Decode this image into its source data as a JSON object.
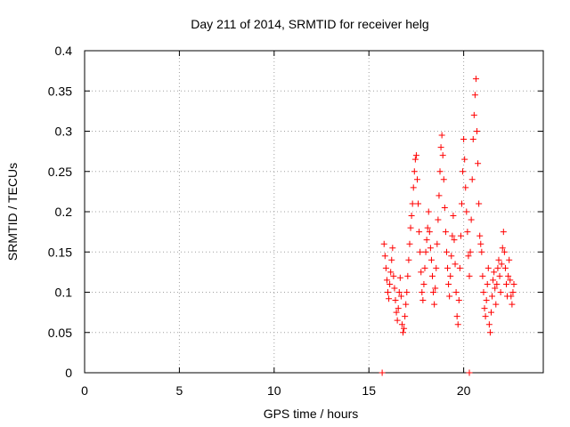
{
  "chart_data": {
    "type": "scatter",
    "title": "Day 211 of 2014, SRMTID for receiver helg",
    "xlabel": "GPS time / hours",
    "ylabel": "SRMTID / TECUs",
    "xlim": [
      0,
      24.2
    ],
    "ylim": [
      0,
      0.4
    ],
    "x_ticks": [
      0,
      5,
      10,
      15,
      20
    ],
    "y_ticks": [
      0,
      0.05,
      0.1,
      0.15,
      0.2,
      0.25,
      0.3,
      0.35,
      0.4
    ],
    "x_tick_labels": [
      "0",
      "5",
      "10",
      "15",
      "20"
    ],
    "y_tick_labels": [
      "0",
      "0.05",
      "0.1",
      "0.15",
      "0.2",
      "0.25",
      "0.3",
      "0.35",
      "0.4"
    ],
    "grid": true,
    "marker": "plus",
    "series": [
      {
        "color": "#ff0000",
        "points": [
          [
            15.7,
            0.0
          ],
          [
            20.3,
            0.0
          ],
          [
            15.8,
            0.16
          ],
          [
            15.85,
            0.145
          ],
          [
            15.9,
            0.13
          ],
          [
            15.95,
            0.115
          ],
          [
            16.0,
            0.1
          ],
          [
            16.05,
            0.092
          ],
          [
            16.1,
            0.11
          ],
          [
            16.15,
            0.125
          ],
          [
            16.2,
            0.14
          ],
          [
            16.25,
            0.155
          ],
          [
            16.3,
            0.12
          ],
          [
            16.35,
            0.105
          ],
          [
            16.4,
            0.09
          ],
          [
            16.45,
            0.075
          ],
          [
            16.5,
            0.065
          ],
          [
            16.55,
            0.08
          ],
          [
            16.6,
            0.1
          ],
          [
            16.65,
            0.118
          ],
          [
            16.7,
            0.095
          ],
          [
            16.75,
            0.06
          ],
          [
            16.8,
            0.05
          ],
          [
            16.85,
            0.055
          ],
          [
            16.9,
            0.07
          ],
          [
            16.95,
            0.085
          ],
          [
            17.0,
            0.1
          ],
          [
            17.05,
            0.12
          ],
          [
            17.1,
            0.14
          ],
          [
            17.15,
            0.16
          ],
          [
            17.2,
            0.18
          ],
          [
            17.25,
            0.195
          ],
          [
            17.3,
            0.21
          ],
          [
            17.35,
            0.23
          ],
          [
            17.4,
            0.25
          ],
          [
            17.45,
            0.265
          ],
          [
            17.5,
            0.27
          ],
          [
            17.55,
            0.24
          ],
          [
            17.6,
            0.21
          ],
          [
            17.65,
            0.175
          ],
          [
            17.7,
            0.15
          ],
          [
            17.75,
            0.125
          ],
          [
            17.8,
            0.1
          ],
          [
            17.85,
            0.09
          ],
          [
            17.9,
            0.11
          ],
          [
            17.95,
            0.13
          ],
          [
            18.0,
            0.15
          ],
          [
            18.05,
            0.165
          ],
          [
            18.1,
            0.18
          ],
          [
            18.15,
            0.2
          ],
          [
            18.2,
            0.175
          ],
          [
            18.25,
            0.155
          ],
          [
            18.3,
            0.14
          ],
          [
            18.35,
            0.12
          ],
          [
            18.4,
            0.1
          ],
          [
            18.45,
            0.085
          ],
          [
            18.5,
            0.105
          ],
          [
            18.55,
            0.13
          ],
          [
            18.6,
            0.16
          ],
          [
            18.65,
            0.19
          ],
          [
            18.7,
            0.22
          ],
          [
            18.75,
            0.25
          ],
          [
            18.8,
            0.28
          ],
          [
            18.85,
            0.295
          ],
          [
            18.9,
            0.27
          ],
          [
            18.95,
            0.24
          ],
          [
            19.0,
            0.205
          ],
          [
            19.05,
            0.175
          ],
          [
            19.1,
            0.15
          ],
          [
            19.15,
            0.13
          ],
          [
            19.2,
            0.11
          ],
          [
            19.25,
            0.095
          ],
          [
            19.3,
            0.12
          ],
          [
            19.35,
            0.145
          ],
          [
            19.4,
            0.17
          ],
          [
            19.45,
            0.195
          ],
          [
            19.5,
            0.165
          ],
          [
            19.55,
            0.135
          ],
          [
            19.6,
            0.1
          ],
          [
            19.65,
            0.07
          ],
          [
            19.7,
            0.06
          ],
          [
            19.75,
            0.09
          ],
          [
            19.8,
            0.13
          ],
          [
            19.85,
            0.17
          ],
          [
            19.9,
            0.21
          ],
          [
            19.95,
            0.25
          ],
          [
            20.0,
            0.29
          ],
          [
            20.05,
            0.265
          ],
          [
            20.1,
            0.23
          ],
          [
            20.15,
            0.2
          ],
          [
            20.2,
            0.175
          ],
          [
            20.25,
            0.145
          ],
          [
            20.3,
            0.12
          ],
          [
            20.35,
            0.15
          ],
          [
            20.4,
            0.19
          ],
          [
            20.45,
            0.24
          ],
          [
            20.5,
            0.29
          ],
          [
            20.55,
            0.32
          ],
          [
            20.6,
            0.345
          ],
          [
            20.65,
            0.365
          ],
          [
            20.7,
            0.3
          ],
          [
            20.75,
            0.26
          ],
          [
            20.8,
            0.21
          ],
          [
            20.85,
            0.17
          ],
          [
            20.9,
            0.16
          ],
          [
            20.95,
            0.15
          ],
          [
            21.0,
            0.12
          ],
          [
            21.05,
            0.1
          ],
          [
            21.1,
            0.08
          ],
          [
            21.15,
            0.07
          ],
          [
            21.2,
            0.09
          ],
          [
            21.25,
            0.11
          ],
          [
            21.3,
            0.13
          ],
          [
            21.35,
            0.06
          ],
          [
            21.4,
            0.05
          ],
          [
            21.45,
            0.075
          ],
          [
            21.5,
            0.095
          ],
          [
            21.55,
            0.115
          ],
          [
            21.6,
            0.125
          ],
          [
            21.65,
            0.105
          ],
          [
            21.7,
            0.085
          ],
          [
            21.75,
            0.11
          ],
          [
            21.8,
            0.13
          ],
          [
            21.85,
            0.14
          ],
          [
            21.9,
            0.12
          ],
          [
            21.95,
            0.1
          ],
          [
            22.0,
            0.135
          ],
          [
            22.05,
            0.155
          ],
          [
            22.1,
            0.175
          ],
          [
            22.15,
            0.15
          ],
          [
            22.2,
            0.13
          ],
          [
            22.25,
            0.11
          ],
          [
            22.3,
            0.095
          ],
          [
            22.35,
            0.12
          ],
          [
            22.4,
            0.14
          ],
          [
            22.45,
            0.115
          ],
          [
            22.5,
            0.095
          ],
          [
            22.55,
            0.085
          ],
          [
            22.6,
            0.1
          ],
          [
            22.65,
            0.11
          ]
        ]
      }
    ]
  }
}
